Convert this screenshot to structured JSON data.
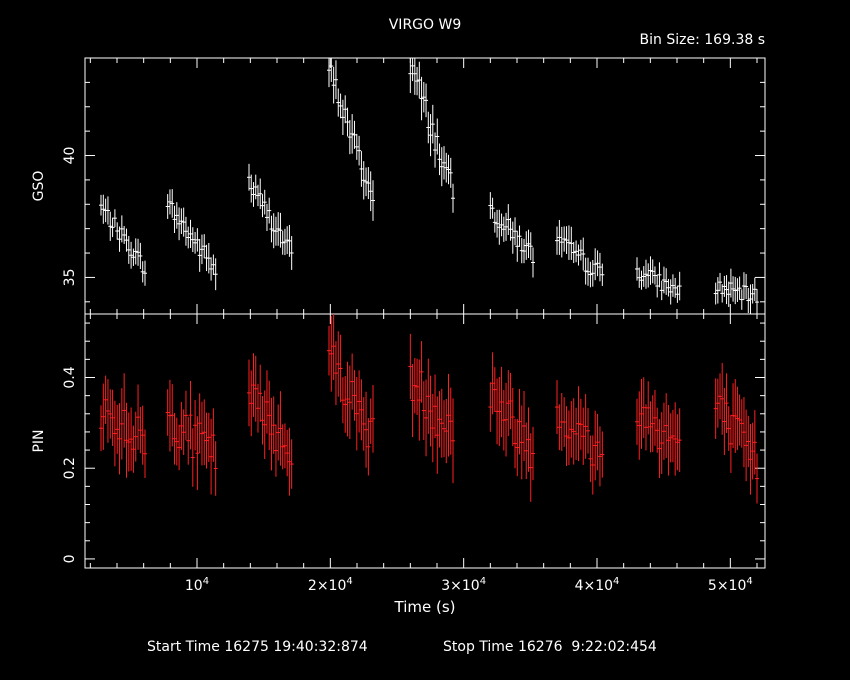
{
  "chart_data": {
    "type": "scatter",
    "title": "VIRGO W9",
    "bin_size_label": "Bin Size: 169.38 s",
    "xlabel": "Time (s)",
    "xlim": [
      1600,
      52600
    ],
    "x_ticks": [
      {
        "value": 10000,
        "label": "10",
        "exp": "4"
      },
      {
        "value": 20000,
        "label": "2×10",
        "exp": "4"
      },
      {
        "value": 30000,
        "label": "3×10",
        "exp": "4"
      },
      {
        "value": 40000,
        "label": "4×10",
        "exp": "4"
      },
      {
        "value": 50000,
        "label": "5×10",
        "exp": "4"
      }
    ],
    "footer": {
      "start": "Start Time 16275 19:40:32:874",
      "stop": "Stop Time 16276  9:22:02:454"
    },
    "panels": [
      {
        "name": "GSO",
        "ylabel": "GSO",
        "color": "#ffffff",
        "ylim": [
          33.5,
          44.0
        ],
        "y_ticks": [
          {
            "value": 35,
            "label": "35"
          },
          {
            "value": 40,
            "label": "40"
          }
        ],
        "segments": [
          {
            "x0": 2800,
            "x1": 6100,
            "y0": 37.9,
            "y1": 35.4,
            "err": 0.5,
            "n": 20
          },
          {
            "x0": 7800,
            "x1": 11400,
            "y0": 38.0,
            "y1": 35.3,
            "err": 0.6,
            "n": 22
          },
          {
            "x0": 13900,
            "x1": 17100,
            "y0": 38.9,
            "y1": 36.0,
            "err": 0.6,
            "n": 20
          },
          {
            "x0": 19900,
            "x1": 23200,
            "y0": 43.6,
            "y1": 38.2,
            "err": 0.7,
            "n": 20
          },
          {
            "x0": 26000,
            "x1": 29200,
            "y0": 43.8,
            "y1": 38.5,
            "err": 0.8,
            "n": 20
          },
          {
            "x0": 32000,
            "x1": 35200,
            "y0": 37.8,
            "y1": 35.9,
            "err": 0.6,
            "n": 20
          },
          {
            "x0": 37000,
            "x1": 40400,
            "y0": 36.5,
            "y1": 35.1,
            "err": 0.6,
            "n": 20
          },
          {
            "x0": 43000,
            "x1": 46200,
            "y0": 35.3,
            "y1": 34.4,
            "err": 0.5,
            "n": 20
          },
          {
            "x0": 48900,
            "x1": 52000,
            "y0": 34.6,
            "y1": 34.2,
            "err": 0.5,
            "n": 20
          }
        ]
      },
      {
        "name": "PIN",
        "ylabel": "PIN",
        "color": "#ff2020",
        "ylim": [
          -0.02,
          0.54
        ],
        "y_ticks": [
          {
            "value": 0,
            "label": "0"
          },
          {
            "value": 0.2,
            "label": "0.2"
          },
          {
            "value": 0.4,
            "label": "0.4"
          }
        ],
        "segments": [
          {
            "x0": 2800,
            "x1": 6100,
            "y0": 0.33,
            "y1": 0.26,
            "err": 0.07,
            "n": 20
          },
          {
            "x0": 7800,
            "x1": 11400,
            "y0": 0.31,
            "y1": 0.23,
            "err": 0.07,
            "n": 22
          },
          {
            "x0": 13900,
            "x1": 17100,
            "y0": 0.36,
            "y1": 0.24,
            "err": 0.07,
            "n": 20
          },
          {
            "x0": 19900,
            "x1": 23200,
            "y0": 0.45,
            "y1": 0.27,
            "err": 0.07,
            "n": 20
          },
          {
            "x0": 26000,
            "x1": 29200,
            "y0": 0.4,
            "y1": 0.28,
            "err": 0.08,
            "n": 20
          },
          {
            "x0": 32000,
            "x1": 35200,
            "y0": 0.37,
            "y1": 0.24,
            "err": 0.07,
            "n": 20
          },
          {
            "x0": 37000,
            "x1": 40400,
            "y0": 0.33,
            "y1": 0.22,
            "err": 0.07,
            "n": 20
          },
          {
            "x0": 43000,
            "x1": 46200,
            "y0": 0.33,
            "y1": 0.25,
            "err": 0.07,
            "n": 20
          },
          {
            "x0": 48900,
            "x1": 52000,
            "y0": 0.34,
            "y1": 0.21,
            "err": 0.07,
            "n": 20
          }
        ]
      }
    ]
  }
}
